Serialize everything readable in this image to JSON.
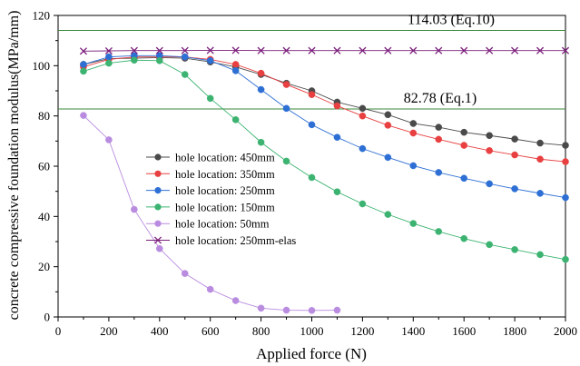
{
  "chart_data": {
    "type": "line",
    "title": "",
    "xlabel": "Applied force (N)",
    "ylabel": "concrete compressive foundation modulus(MPa/mm)",
    "xlim": [
      0,
      2000
    ],
    "ylim": [
      0,
      120
    ],
    "xticks": [
      0,
      200,
      400,
      600,
      800,
      1000,
      1200,
      1400,
      1600,
      1800,
      2000
    ],
    "yticks": [
      0,
      20,
      40,
      60,
      80,
      100,
      120
    ],
    "grid": false,
    "legend_position": "center-left",
    "reference_lines": [
      {
        "label": "114.03 (Eq.10)",
        "y": 114.03,
        "color": "#3a8a3a"
      },
      {
        "label": "82.78 (Eq.1)",
        "y": 82.78,
        "color": "#3a8a3a"
      }
    ],
    "series": [
      {
        "name": "hole location: 450mm",
        "marker": "circle",
        "color": "#4a4a4a",
        "x": [
          100,
          200,
          300,
          400,
          500,
          600,
          700,
          800,
          900,
          1000,
          1100,
          1200,
          1300,
          1400,
          1500,
          1600,
          1700,
          1800,
          1900,
          2000
        ],
        "y": [
          100.5,
          102.8,
          103.0,
          103.2,
          103.0,
          101.5,
          99.5,
          96.5,
          93.0,
          90.0,
          85.5,
          83.0,
          80.5,
          77.0,
          75.5,
          73.5,
          72.2,
          70.8,
          69.2,
          68.3
        ]
      },
      {
        "name": "hole location: 350mm",
        "marker": "circle",
        "color": "#e84040",
        "x": [
          100,
          200,
          300,
          400,
          500,
          600,
          700,
          800,
          900,
          1000,
          1100,
          1200,
          1300,
          1400,
          1500,
          1600,
          1700,
          1800,
          1900,
          2000
        ],
        "y": [
          99.5,
          102.5,
          103.5,
          103.5,
          103.5,
          102.5,
          100.5,
          97.0,
          92.5,
          88.5,
          84.0,
          80.0,
          76.3,
          73.2,
          70.7,
          68.3,
          66.2,
          64.5,
          62.8,
          61.8
        ]
      },
      {
        "name": "hole location: 250mm",
        "marker": "circle",
        "color": "#2d6fd4",
        "x": [
          100,
          200,
          300,
          400,
          500,
          600,
          700,
          800,
          900,
          1000,
          1100,
          1200,
          1300,
          1400,
          1500,
          1600,
          1700,
          1800,
          1900,
          2000
        ],
        "y": [
          100.5,
          103.5,
          104.0,
          104.0,
          103.5,
          102.0,
          98.0,
          90.5,
          83.0,
          76.5,
          71.5,
          67.0,
          63.5,
          60.2,
          57.5,
          55.2,
          53.0,
          51.0,
          49.2,
          47.5
        ]
      },
      {
        "name": "hole location: 150mm",
        "marker": "circle",
        "color": "#3cb371",
        "x": [
          100,
          200,
          300,
          400,
          500,
          600,
          700,
          800,
          900,
          1000,
          1100,
          1200,
          1300,
          1400,
          1500,
          1600,
          1700,
          1800,
          1900,
          2000
        ],
        "y": [
          97.8,
          101.0,
          102.2,
          102.0,
          96.5,
          87.0,
          78.5,
          69.5,
          62.0,
          55.5,
          49.8,
          45.0,
          40.8,
          37.2,
          34.0,
          31.2,
          28.8,
          26.8,
          24.8,
          22.9
        ]
      },
      {
        "name": "hole location: 50mm",
        "marker": "circle",
        "color": "#b98ce0",
        "x": [
          100,
          200,
          300,
          400,
          500,
          600,
          700,
          800,
          900,
          1000,
          1100
        ],
        "y": [
          80.2,
          70.5,
          42.8,
          27.2,
          17.3,
          11.0,
          6.5,
          3.5,
          2.7,
          2.6,
          2.7
        ]
      },
      {
        "name": "hole location: 250mm-elas",
        "marker": "x",
        "color": "#7b1f7b",
        "x": [
          100,
          200,
          300,
          400,
          500,
          600,
          700,
          800,
          900,
          1000,
          1100,
          1200,
          1300,
          1400,
          1500,
          1600,
          1700,
          1800,
          1900,
          2000
        ],
        "y": [
          105.8,
          105.9,
          106.0,
          106.0,
          106.0,
          106.1,
          106.1,
          106.0,
          106.0,
          106.0,
          106.0,
          106.0,
          106.0,
          106.0,
          106.0,
          106.0,
          106.0,
          106.0,
          106.0,
          106.0
        ]
      }
    ]
  }
}
